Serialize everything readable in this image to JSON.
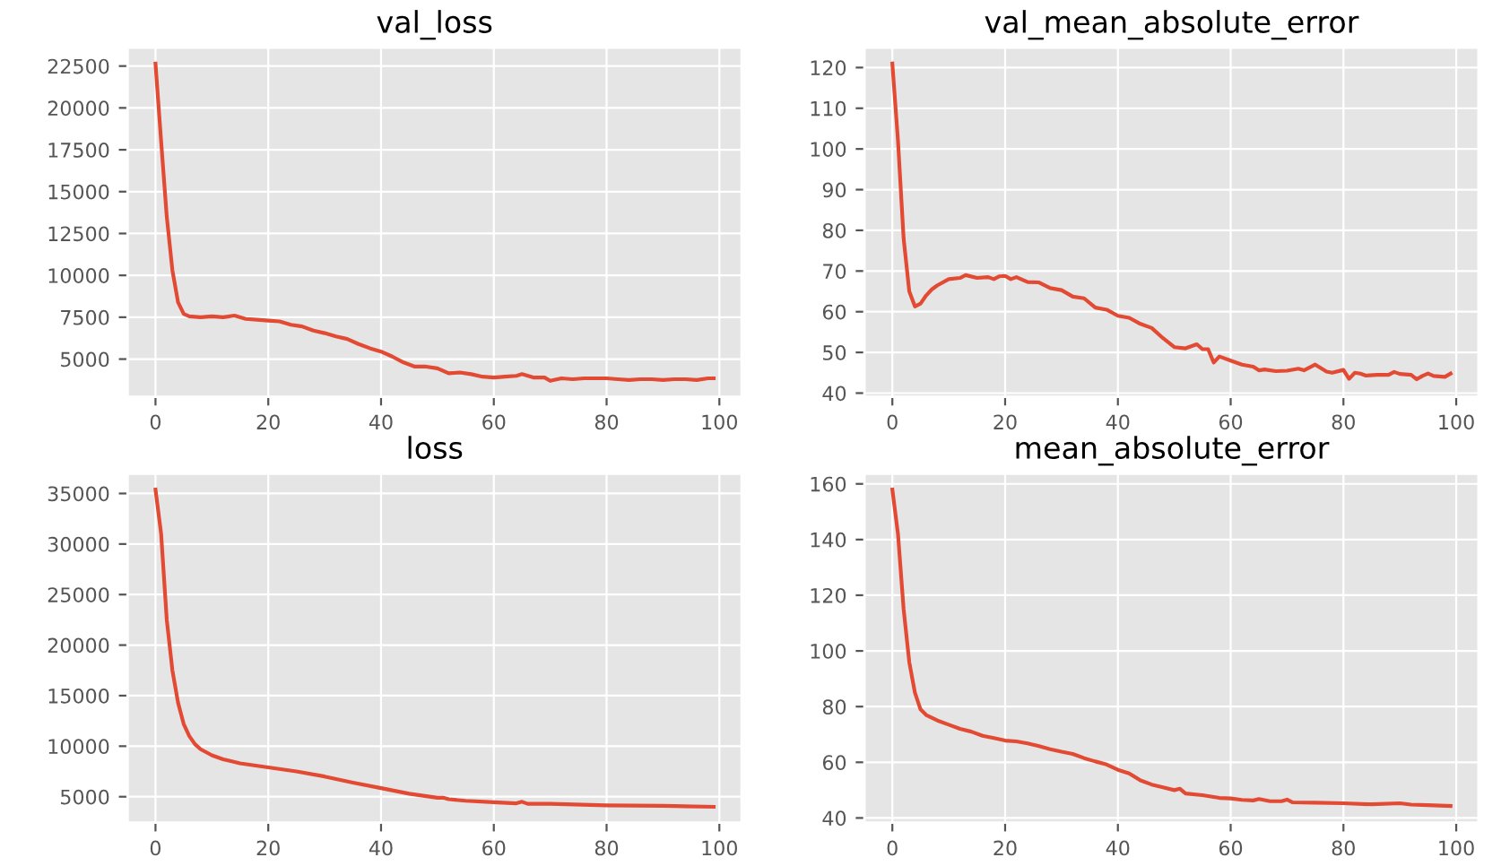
{
  "chart_data": [
    {
      "type": "line",
      "title": "val_loss",
      "xlim": [
        -4.95,
        103.95
      ],
      "xticks": [
        0,
        20,
        40,
        60,
        80,
        100
      ],
      "ylim": [
        2750,
        23600
      ],
      "yticks": [
        5000,
        7500,
        10000,
        12500,
        15000,
        17500,
        20000,
        22500
      ],
      "grid": true,
      "series": [
        {
          "color": "#e24a33",
          "x": [
            0,
            1,
            2,
            3,
            4,
            5,
            6,
            8,
            10,
            12,
            14,
            16,
            18,
            20,
            22,
            24,
            26,
            28,
            30,
            32,
            34,
            36,
            38,
            40,
            42,
            44,
            46,
            48,
            50,
            52,
            54,
            56,
            58,
            60,
            62,
            64,
            65,
            67,
            69,
            70,
            72,
            74,
            76,
            78,
            80,
            82,
            84,
            86,
            88,
            90,
            92,
            94,
            96,
            98,
            99
          ],
          "values": [
            22650,
            18000,
            13500,
            10300,
            8400,
            7700,
            7550,
            7500,
            7550,
            7500,
            7600,
            7400,
            7350,
            7300,
            7250,
            7050,
            6950,
            6700,
            6550,
            6350,
            6200,
            5900,
            5650,
            5450,
            5150,
            4800,
            4550,
            4550,
            4450,
            4150,
            4200,
            4100,
            3950,
            3900,
            3950,
            4000,
            4100,
            3900,
            3900,
            3700,
            3850,
            3800,
            3850,
            3850,
            3850,
            3800,
            3750,
            3800,
            3800,
            3750,
            3800,
            3800,
            3750,
            3850,
            3850
          ]
        }
      ]
    },
    {
      "type": "line",
      "title": "val_mean_absolute_error",
      "xlim": [
        -4.95,
        103.95
      ],
      "xticks": [
        0,
        20,
        40,
        60,
        80,
        100
      ],
      "ylim": [
        39.1,
        124.9
      ],
      "yticks": [
        40,
        50,
        60,
        70,
        80,
        90,
        100,
        110,
        120
      ],
      "grid": true,
      "series": [
        {
          "color": "#e24a33",
          "x": [
            0,
            1,
            2,
            3,
            4,
            5,
            6,
            7,
            8,
            10,
            12,
            13,
            15,
            17,
            18,
            19,
            20,
            21,
            22,
            24,
            26,
            28,
            30,
            32,
            34,
            36,
            38,
            40,
            42,
            44,
            46,
            48,
            50,
            52,
            54,
            55,
            56,
            57,
            58,
            60,
            62,
            64,
            65,
            66,
            68,
            70,
            72,
            73,
            75,
            77,
            78,
            80,
            81,
            82,
            83,
            84,
            86,
            88,
            89,
            90,
            92,
            93,
            94,
            95,
            96,
            98,
            99
          ],
          "values": [
            121,
            102,
            78,
            65,
            61.3,
            62,
            64,
            65.5,
            66.5,
            68,
            68.3,
            69,
            68.3,
            68.5,
            68,
            68.7,
            68.8,
            68,
            68.5,
            67.3,
            67.2,
            65.8,
            65.3,
            63.7,
            63.3,
            61,
            60.5,
            59,
            58.5,
            57,
            56,
            53.5,
            51.3,
            51,
            52,
            50.8,
            50.8,
            47.5,
            49,
            48,
            47,
            46.5,
            45.6,
            45.8,
            45.4,
            45.5,
            46,
            45.6,
            47,
            45.3,
            45,
            45.7,
            43.5,
            45,
            44.8,
            44.3,
            44.5,
            44.5,
            45.2,
            44.7,
            44.5,
            43.4,
            44.2,
            44.8,
            44.2,
            44,
            44.8
          ]
        }
      ]
    },
    {
      "type": "line",
      "title": "loss",
      "xlim": [
        -4.95,
        103.95
      ],
      "xticks": [
        0,
        20,
        40,
        60,
        80,
        100
      ],
      "ylim": [
        2430,
        36970
      ],
      "yticks": [
        5000,
        10000,
        15000,
        20000,
        25000,
        30000,
        35000
      ],
      "grid": true,
      "series": [
        {
          "color": "#e24a33",
          "x": [
            0,
            1,
            2,
            3,
            4,
            5,
            6,
            7,
            8,
            10,
            12,
            15,
            20,
            25,
            30,
            35,
            40,
            45,
            50,
            51,
            52,
            55,
            60,
            64,
            65,
            66,
            70,
            80,
            90,
            99
          ],
          "values": [
            35400,
            31000,
            22500,
            17500,
            14300,
            12200,
            11000,
            10200,
            9700,
            9100,
            8700,
            8300,
            7900,
            7500,
            7000,
            6400,
            5850,
            5300,
            4900,
            4900,
            4750,
            4600,
            4450,
            4350,
            4500,
            4300,
            4300,
            4150,
            4100,
            4000
          ]
        }
      ]
    },
    {
      "type": "line",
      "title": "mean_absolute_error",
      "xlim": [
        -4.95,
        103.95
      ],
      "xticks": [
        0,
        20,
        40,
        60,
        80,
        100
      ],
      "ylim": [
        38.3,
        163.7
      ],
      "yticks": [
        40,
        60,
        80,
        100,
        120,
        140,
        160
      ],
      "grid": true,
      "series": [
        {
          "color": "#e24a33",
          "x": [
            0,
            1,
            2,
            3,
            4,
            5,
            6,
            8,
            10,
            12,
            14,
            16,
            18,
            20,
            22,
            24,
            26,
            28,
            30,
            32,
            34,
            36,
            38,
            40,
            42,
            44,
            46,
            48,
            50,
            51,
            52,
            55,
            58,
            60,
            62,
            64,
            65,
            67,
            69,
            70,
            71,
            75,
            80,
            85,
            90,
            92,
            95,
            99
          ],
          "values": [
            158,
            142,
            115,
            96,
            85,
            79,
            77,
            75,
            73.5,
            72,
            71,
            69.5,
            68.7,
            67.8,
            67.5,
            66.8,
            65.8,
            64.7,
            63.8,
            63,
            61.5,
            60.3,
            59.2,
            57.3,
            56,
            53.5,
            52,
            51,
            50,
            50.5,
            48.8,
            48.2,
            47.2,
            47,
            46.5,
            46.3,
            46.8,
            46,
            46,
            46.6,
            45.6,
            45.5,
            45.3,
            44.9,
            45.3,
            44.8,
            44.6,
            44.3
          ]
        }
      ]
    }
  ]
}
